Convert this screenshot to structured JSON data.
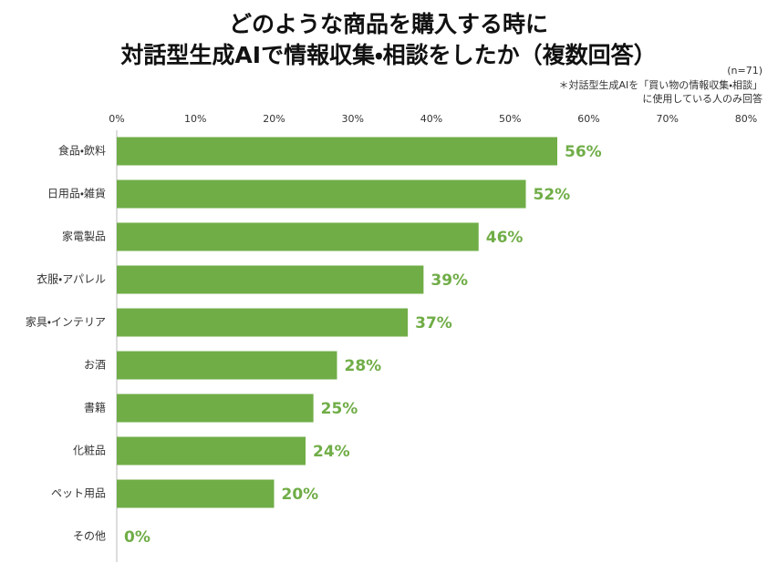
{
  "chart_data": {
    "type": "bar",
    "orientation": "horizontal",
    "title": [
      "どのような商品を購入する時に",
      "対話型生成AIで情報収集・相談をしたか（複数回答）"
    ],
    "notes": [
      "(n=71)",
      "＊対話型生成AIを「買い物の情報収集・相談」",
      "に使用している人のみ回答"
    ],
    "categories": [
      "食品・飲料",
      "日用品・雑貨",
      "家電製品",
      "衣服・アパレル",
      "家具・インテリア",
      "お酒",
      "書籍",
      "化粧品",
      "ペット用品",
      "その他"
    ],
    "values": [
      56,
      52,
      46,
      39,
      37,
      28,
      25,
      24,
      20,
      0
    ],
    "value_labels": [
      "56%",
      "52%",
      "46%",
      "39%",
      "37%",
      "28%",
      "25%",
      "24%",
      "20%",
      "0%"
    ],
    "color": "#70ad47",
    "xlim": [
      0,
      80
    ],
    "xticks": [
      {
        "value": 0,
        "label": "0%"
      },
      {
        "value": 10,
        "label": "10%"
      },
      {
        "value": 20,
        "label": "20%"
      },
      {
        "value": 30,
        "label": "30%"
      },
      {
        "value": 40,
        "label": "40%"
      },
      {
        "value": 50,
        "label": "50%"
      },
      {
        "value": 60,
        "label": "60%"
      },
      {
        "value": 70,
        "label": "70%"
      },
      {
        "value": 80,
        "label": "80%"
      }
    ],
    "grid": false
  }
}
